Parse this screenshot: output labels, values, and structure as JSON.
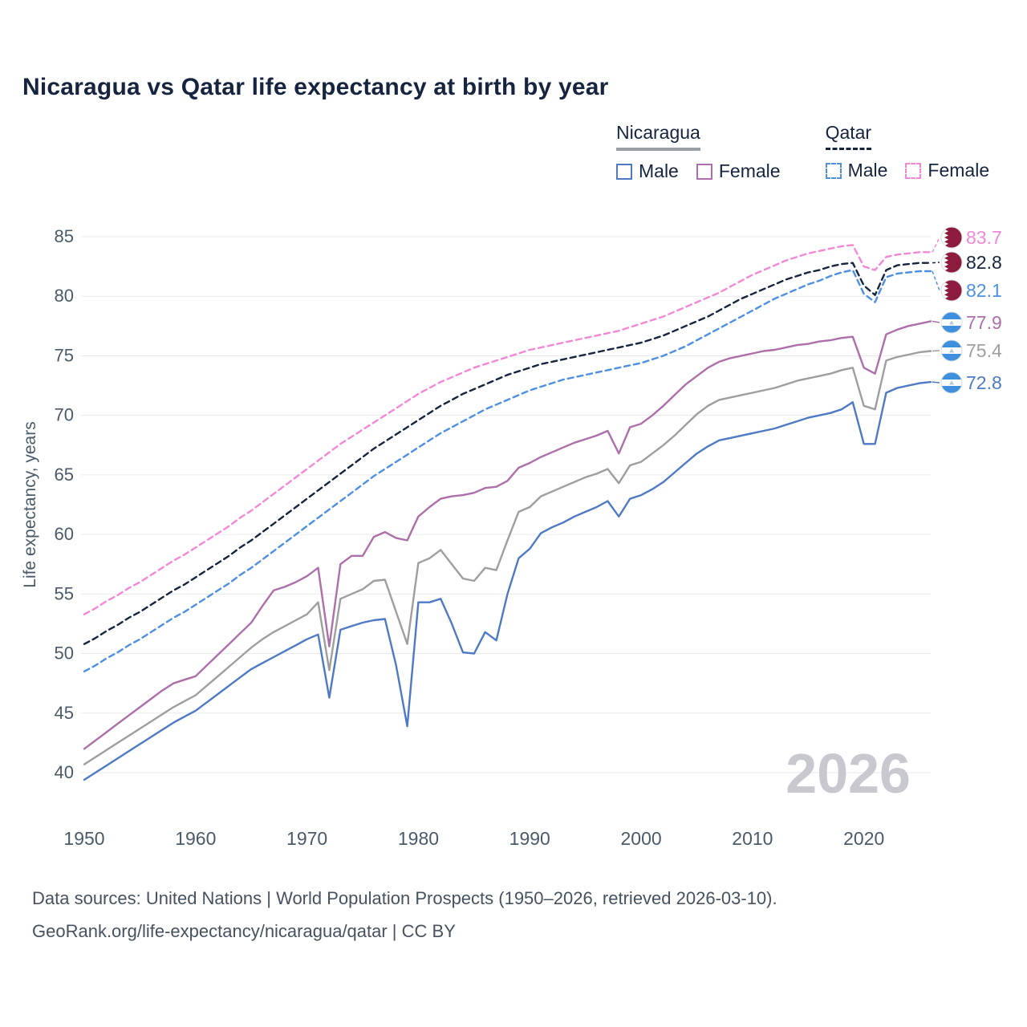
{
  "title": "Nicaragua vs Qatar life expectancy at birth by year",
  "legend": {
    "groups": [
      {
        "label": "Nicaragua",
        "underline": "solid",
        "items": [
          {
            "label": "Male",
            "color": "#4e79c4",
            "dash": false
          },
          {
            "label": "Female",
            "color": "#ad6fa9",
            "dash": false
          }
        ]
      },
      {
        "label": "Qatar",
        "underline": "dashed",
        "items": [
          {
            "label": "Male",
            "color": "#4d8fe3",
            "dash": true
          },
          {
            "label": "Female",
            "color": "#f287d6",
            "dash": true
          }
        ]
      }
    ]
  },
  "footer": {
    "line1": "Data sources: United Nations | World Population Prospects (1950–2026, retrieved 2026-03-10).",
    "line2": "GeoRank.org/life-expectancy/nicaragua/qatar | CC BY"
  },
  "chart_data": {
    "type": "line",
    "title": "Nicaragua vs Qatar life expectancy at birth by year",
    "xlabel": "",
    "ylabel": "Life expectancy, years",
    "watermark": "2026",
    "ylim": [
      40,
      85
    ],
    "yticks": [
      40,
      45,
      50,
      55,
      60,
      65,
      70,
      75,
      80,
      85
    ],
    "xticks": [
      1950,
      1960,
      1970,
      1980,
      1990,
      2000,
      2010,
      2020
    ],
    "x": [
      1950,
      1951,
      1952,
      1953,
      1954,
      1955,
      1956,
      1957,
      1958,
      1959,
      1960,
      1961,
      1962,
      1963,
      1964,
      1965,
      1966,
      1967,
      1968,
      1969,
      1970,
      1971,
      1972,
      1973,
      1974,
      1975,
      1976,
      1977,
      1978,
      1979,
      1980,
      1981,
      1982,
      1983,
      1984,
      1985,
      1986,
      1987,
      1988,
      1989,
      1990,
      1991,
      1992,
      1993,
      1994,
      1995,
      1996,
      1997,
      1998,
      1999,
      2000,
      2001,
      2002,
      2003,
      2004,
      2005,
      2006,
      2007,
      2008,
      2009,
      2010,
      2011,
      2012,
      2013,
      2014,
      2015,
      2016,
      2017,
      2018,
      2019,
      2020,
      2021,
      2022,
      2023,
      2024,
      2025,
      2026
    ],
    "series": [
      {
        "name": "Qatar Female",
        "country": "Qatar",
        "sex": "Female",
        "color": "#f287d6",
        "dash": true,
        "flag": "qatar",
        "end_value": 83.7,
        "values": [
          53.3,
          53.8,
          54.4,
          54.9,
          55.5,
          56.0,
          56.6,
          57.2,
          57.8,
          58.3,
          58.9,
          59.5,
          60.1,
          60.7,
          61.4,
          62.0,
          62.7,
          63.4,
          64.1,
          64.8,
          65.5,
          66.2,
          66.9,
          67.6,
          68.2,
          68.8,
          69.4,
          70.0,
          70.6,
          71.2,
          71.8,
          72.3,
          72.8,
          73.2,
          73.6,
          74.0,
          74.3,
          74.6,
          74.9,
          75.2,
          75.5,
          75.7,
          75.9,
          76.1,
          76.3,
          76.5,
          76.7,
          76.9,
          77.1,
          77.4,
          77.7,
          78.0,
          78.3,
          78.7,
          79.1,
          79.5,
          79.9,
          80.3,
          80.8,
          81.3,
          81.8,
          82.2,
          82.6,
          83.0,
          83.3,
          83.6,
          83.8,
          84.0,
          84.2,
          84.3,
          82.5,
          82.2,
          83.3,
          83.5,
          83.6,
          83.7,
          83.7
        ]
      },
      {
        "name": "Qatar Both sexes",
        "country": "Qatar",
        "sex": "Both",
        "color": "#16243f",
        "dash": true,
        "flag": "qatar",
        "end_value": 82.8,
        "values": [
          50.8,
          51.3,
          51.9,
          52.4,
          53.0,
          53.5,
          54.1,
          54.7,
          55.3,
          55.8,
          56.4,
          57.0,
          57.6,
          58.2,
          58.9,
          59.5,
          60.2,
          60.9,
          61.6,
          62.3,
          63.0,
          63.7,
          64.4,
          65.1,
          65.8,
          66.5,
          67.2,
          67.8,
          68.4,
          69.0,
          69.6,
          70.2,
          70.8,
          71.3,
          71.8,
          72.2,
          72.6,
          73.0,
          73.4,
          73.7,
          74.0,
          74.3,
          74.5,
          74.7,
          74.9,
          75.1,
          75.3,
          75.5,
          75.7,
          75.9,
          76.1,
          76.4,
          76.7,
          77.1,
          77.5,
          77.9,
          78.3,
          78.8,
          79.3,
          79.8,
          80.2,
          80.6,
          81.0,
          81.4,
          81.7,
          82.0,
          82.2,
          82.5,
          82.7,
          82.8,
          80.9,
          80.1,
          82.2,
          82.6,
          82.7,
          82.8,
          82.8
        ]
      },
      {
        "name": "Qatar Male",
        "country": "Qatar",
        "sex": "Male",
        "color": "#4d8fe3",
        "dash": true,
        "flag": "qatar",
        "end_value": 82.1,
        "values": [
          48.5,
          49.0,
          49.6,
          50.1,
          50.7,
          51.2,
          51.8,
          52.4,
          53.0,
          53.5,
          54.1,
          54.7,
          55.3,
          55.9,
          56.6,
          57.2,
          57.9,
          58.6,
          59.3,
          60.0,
          60.7,
          61.4,
          62.1,
          62.8,
          63.5,
          64.2,
          64.9,
          65.5,
          66.1,
          66.7,
          67.3,
          67.9,
          68.5,
          69.0,
          69.5,
          70.0,
          70.5,
          70.9,
          71.3,
          71.7,
          72.1,
          72.4,
          72.7,
          73.0,
          73.2,
          73.4,
          73.6,
          73.8,
          74.0,
          74.2,
          74.4,
          74.7,
          75.0,
          75.4,
          75.8,
          76.3,
          76.8,
          77.3,
          77.8,
          78.3,
          78.8,
          79.3,
          79.8,
          80.2,
          80.6,
          81.0,
          81.3,
          81.7,
          82.0,
          82.2,
          80.2,
          79.5,
          81.6,
          81.9,
          82.0,
          82.1,
          82.1
        ]
      },
      {
        "name": "Nicaragua Female",
        "country": "Nicaragua",
        "sex": "Female",
        "color": "#ad6fa9",
        "dash": false,
        "flag": "nicaragua",
        "end_value": 77.9,
        "values": [
          42.0,
          42.7,
          43.4,
          44.1,
          44.8,
          45.5,
          46.2,
          46.9,
          47.5,
          47.8,
          48.1,
          49.0,
          49.9,
          50.8,
          51.7,
          52.6,
          54.0,
          55.3,
          55.6,
          56.0,
          56.5,
          57.2,
          50.6,
          57.5,
          58.2,
          58.2,
          59.8,
          60.2,
          59.7,
          59.5,
          61.5,
          62.3,
          63.0,
          63.2,
          63.3,
          63.5,
          63.9,
          64.0,
          64.5,
          65.6,
          66.0,
          66.5,
          66.9,
          67.3,
          67.7,
          68.0,
          68.3,
          68.7,
          66.8,
          69.0,
          69.3,
          70.0,
          70.8,
          71.7,
          72.6,
          73.3,
          74.0,
          74.5,
          74.8,
          75.0,
          75.2,
          75.4,
          75.5,
          75.7,
          75.9,
          76.0,
          76.2,
          76.3,
          76.5,
          76.6,
          74.0,
          73.5,
          76.8,
          77.2,
          77.5,
          77.7,
          77.9
        ]
      },
      {
        "name": "Nicaragua Both sexes",
        "country": "Nicaragua",
        "sex": "Both",
        "color": "#9e9e9e",
        "dash": false,
        "flag": "nicaragua",
        "end_value": 75.4,
        "values": [
          40.7,
          41.3,
          41.9,
          42.5,
          43.1,
          43.7,
          44.3,
          44.9,
          45.5,
          46.0,
          46.5,
          47.3,
          48.1,
          48.9,
          49.7,
          50.5,
          51.2,
          51.8,
          52.3,
          52.8,
          53.3,
          54.3,
          48.6,
          54.6,
          55.0,
          55.4,
          56.1,
          56.2,
          53.5,
          50.8,
          57.6,
          58.0,
          58.7,
          57.5,
          56.3,
          56.1,
          57.2,
          57.0,
          59.5,
          61.9,
          62.3,
          63.2,
          63.6,
          64.0,
          64.4,
          64.8,
          65.1,
          65.5,
          64.3,
          65.8,
          66.1,
          66.8,
          67.5,
          68.3,
          69.2,
          70.1,
          70.8,
          71.3,
          71.5,
          71.7,
          71.9,
          72.1,
          72.3,
          72.6,
          72.9,
          73.1,
          73.3,
          73.5,
          73.8,
          74.0,
          70.8,
          70.5,
          74.6,
          74.9,
          75.1,
          75.3,
          75.4
        ]
      },
      {
        "name": "Nicaragua Male",
        "country": "Nicaragua",
        "sex": "Male",
        "color": "#4e79c4",
        "dash": false,
        "flag": "nicaragua",
        "end_value": 72.8,
        "values": [
          39.4,
          40.0,
          40.6,
          41.2,
          41.8,
          42.4,
          43.0,
          43.6,
          44.2,
          44.7,
          45.2,
          45.9,
          46.6,
          47.3,
          48.0,
          48.7,
          49.2,
          49.7,
          50.2,
          50.7,
          51.2,
          51.6,
          46.3,
          52.0,
          52.3,
          52.6,
          52.8,
          52.9,
          49.0,
          43.9,
          54.3,
          54.3,
          54.6,
          52.5,
          50.1,
          50.0,
          51.8,
          51.1,
          55.0,
          58.0,
          58.8,
          60.1,
          60.6,
          61.0,
          61.5,
          61.9,
          62.3,
          62.8,
          61.5,
          63.0,
          63.3,
          63.8,
          64.4,
          65.2,
          66.0,
          66.8,
          67.4,
          67.9,
          68.1,
          68.3,
          68.5,
          68.7,
          68.9,
          69.2,
          69.5,
          69.8,
          70.0,
          70.2,
          70.5,
          71.1,
          67.6,
          67.6,
          71.9,
          72.3,
          72.5,
          72.7,
          72.8
        ]
      }
    ]
  }
}
